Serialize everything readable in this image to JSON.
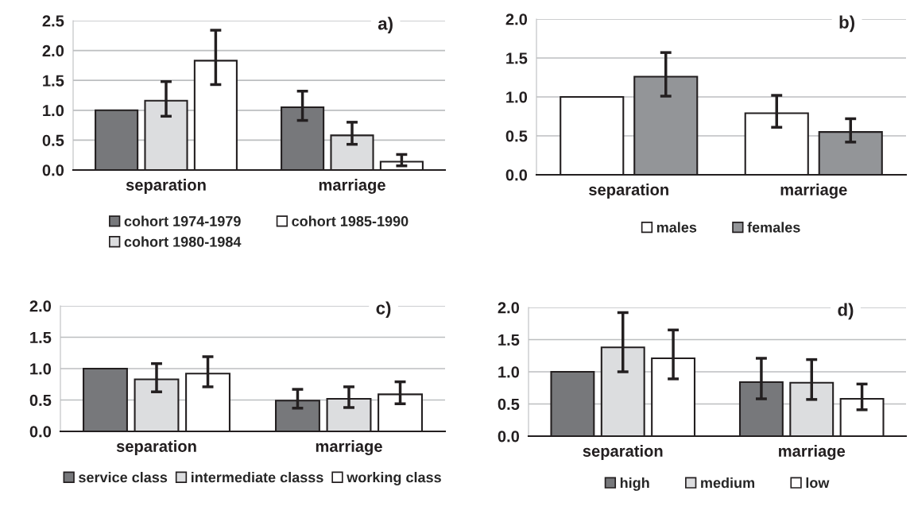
{
  "chart_data": [
    {
      "type": "bar",
      "title": "a)",
      "categories": [
        "separation",
        "marriage"
      ],
      "ylim": [
        0,
        2.5
      ],
      "yticks": [
        {
          "value": 0,
          "label": "0.0"
        },
        {
          "value": 0.5,
          "label": "0.5"
        },
        {
          "value": 1,
          "label": "1.0"
        },
        {
          "value": 1.5,
          "label": "1.5"
        },
        {
          "value": 2,
          "label": "2.0"
        },
        {
          "value": 2.5,
          "label": "2.5"
        }
      ],
      "grid": "y",
      "legend": "bottom",
      "series": [
        {
          "name": "cohort 1974-1979",
          "color": "#77787b",
          "values": [
            1.0,
            1.05
          ],
          "errors": [
            null,
            [
              0.83,
              1.32
            ]
          ]
        },
        {
          "name": "cohort 1980-1984",
          "color": "#dcdddf",
          "values": [
            1.16,
            0.58
          ],
          "errors": [
            [
              0.9,
              1.48
            ],
            [
              0.43,
              0.8
            ]
          ]
        },
        {
          "name": "cohort 1985-1990",
          "color": "#ffffff",
          "values": [
            1.83,
            0.14
          ],
          "errors": [
            [
              1.43,
              2.34
            ],
            [
              0.07,
              0.26
            ]
          ]
        }
      ]
    },
    {
      "type": "bar",
      "title": "b)",
      "categories": [
        "separation",
        "marriage"
      ],
      "ylim": [
        0,
        2
      ],
      "yticks": [
        {
          "value": 0,
          "label": "0.0"
        },
        {
          "value": 0.5,
          "label": "0.5"
        },
        {
          "value": 1,
          "label": "1.0"
        },
        {
          "value": 1.5,
          "label": "1.5"
        },
        {
          "value": 2,
          "label": "2.0"
        }
      ],
      "grid": "y",
      "legend": "bottom",
      "series": [
        {
          "name": "males",
          "color": "#ffffff",
          "values": [
            1.0,
            0.79
          ],
          "errors": [
            null,
            [
              0.61,
              1.02
            ]
          ]
        },
        {
          "name": "females",
          "color": "#939598",
          "values": [
            1.26,
            0.55
          ],
          "errors": [
            [
              1.01,
              1.57
            ],
            [
              0.42,
              0.72
            ]
          ]
        }
      ]
    },
    {
      "type": "bar",
      "title": "c)",
      "categories": [
        "separation",
        "marriage"
      ],
      "ylim": [
        0,
        2
      ],
      "yticks": [
        {
          "value": 0,
          "label": "0.0"
        },
        {
          "value": 0.5,
          "label": "0.5"
        },
        {
          "value": 1,
          "label": "1.0"
        },
        {
          "value": 1.5,
          "label": "1.5"
        },
        {
          "value": 2,
          "label": "2.0"
        }
      ],
      "grid": "y",
      "legend": "bottom",
      "series": [
        {
          "name": "service class",
          "color": "#77787b",
          "values": [
            1.0,
            0.49
          ],
          "errors": [
            null,
            [
              0.37,
              0.67
            ]
          ]
        },
        {
          "name": "intermediate classs",
          "color": "#dcdddf",
          "values": [
            0.83,
            0.52
          ],
          "errors": [
            [
              0.63,
              1.08
            ],
            [
              0.38,
              0.71
            ]
          ]
        },
        {
          "name": "working class",
          "color": "#ffffff",
          "values": [
            0.92,
            0.59
          ],
          "errors": [
            [
              0.71,
              1.19
            ],
            [
              0.44,
              0.79
            ]
          ]
        }
      ]
    },
    {
      "type": "bar",
      "title": "d)",
      "categories": [
        "separation",
        "marriage"
      ],
      "ylim": [
        0,
        2
      ],
      "yticks": [
        {
          "value": 0,
          "label": "0.0"
        },
        {
          "value": 0.5,
          "label": "0.5"
        },
        {
          "value": 1,
          "label": "1.0"
        },
        {
          "value": 1.5,
          "label": "1.5"
        },
        {
          "value": 2,
          "label": "2.0"
        }
      ],
      "grid": "y",
      "legend": "bottom",
      "series": [
        {
          "name": "high",
          "color": "#77787b",
          "values": [
            1.0,
            0.84
          ],
          "errors": [
            null,
            [
              0.58,
              1.21
            ]
          ]
        },
        {
          "name": "medium",
          "color": "#dcdddf",
          "values": [
            1.38,
            0.83
          ],
          "errors": [
            [
              1.0,
              1.92
            ],
            [
              0.57,
              1.19
            ]
          ]
        },
        {
          "name": "low",
          "color": "#ffffff",
          "values": [
            1.21,
            0.58
          ],
          "errors": [
            [
              0.89,
              1.65
            ],
            [
              0.41,
              0.81
            ]
          ]
        }
      ]
    }
  ]
}
